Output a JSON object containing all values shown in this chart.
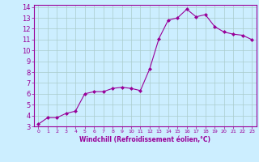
{
  "x": [
    0,
    1,
    2,
    3,
    4,
    5,
    6,
    7,
    8,
    9,
    10,
    11,
    12,
    13,
    14,
    15,
    16,
    17,
    18,
    19,
    20,
    21,
    22,
    23
  ],
  "y": [
    3.2,
    3.8,
    3.8,
    4.2,
    4.4,
    6.0,
    6.2,
    6.2,
    6.5,
    6.6,
    6.5,
    6.3,
    8.3,
    11.1,
    12.8,
    13.0,
    13.8,
    13.1,
    13.3,
    12.2,
    11.7,
    11.5,
    11.4,
    11.0
  ],
  "line_color": "#990099",
  "marker": "D",
  "marker_size": 2,
  "bg_color": "#cceeff",
  "grid_color": "#aacccc",
  "xlabel": "Windchill (Refroidissement éolien,°C)",
  "tick_color": "#990099",
  "xlim": [
    -0.5,
    23.5
  ],
  "ylim": [
    3,
    14.2
  ],
  "yticks": [
    3,
    4,
    5,
    6,
    7,
    8,
    9,
    10,
    11,
    12,
    13,
    14
  ],
  "xticks": [
    0,
    1,
    2,
    3,
    4,
    5,
    6,
    7,
    8,
    9,
    10,
    11,
    12,
    13,
    14,
    15,
    16,
    17,
    18,
    19,
    20,
    21,
    22,
    23
  ]
}
